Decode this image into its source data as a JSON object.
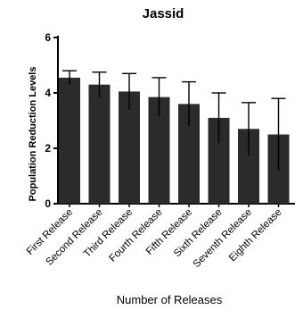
{
  "chart_data": {
    "type": "bar",
    "title": "Jassid",
    "xlabel": "Number of Releases",
    "ylabel": "Population Reduction Levels",
    "categories": [
      "First Release",
      "Second Release",
      "Third Release",
      "Fourth Release",
      "Fifth Release",
      "Sixth Release",
      "Seventh Release",
      "Eighth Release"
    ],
    "values": [
      4.55,
      4.3,
      4.05,
      3.85,
      3.6,
      3.1,
      2.7,
      2.5
    ],
    "errors": [
      0.25,
      0.45,
      0.65,
      0.7,
      0.8,
      0.9,
      0.95,
      1.3
    ],
    "ylim": [
      0,
      6
    ],
    "yticks": [
      "0",
      "2",
      "4",
      "6"
    ],
    "bar_color": "#2b2b2b",
    "grid": false,
    "legend": "none"
  }
}
